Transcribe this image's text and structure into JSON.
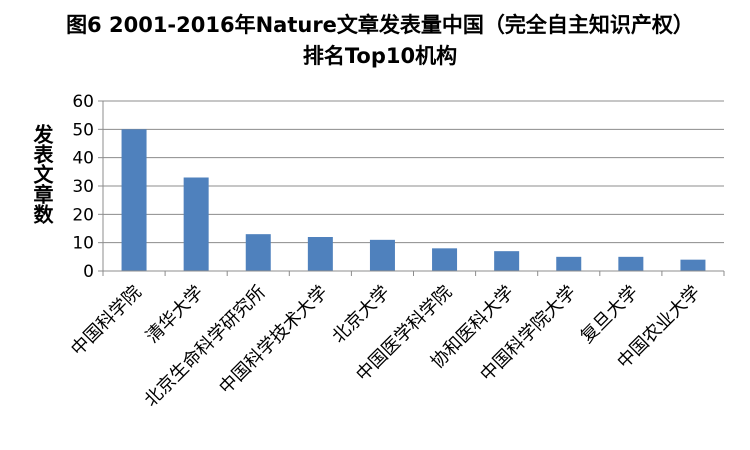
{
  "chart_data": {
    "type": "bar",
    "title": "图6 2001-2016年Nature文章发表量中国（完全自主知识产权）排名Top10机构",
    "xlabel": "",
    "ylabel": "发表文章数",
    "ylim": [
      0,
      60
    ],
    "yticks": [
      0,
      10,
      20,
      30,
      40,
      50,
      60
    ],
    "grid": true,
    "legend": "none",
    "bar_color": "#4F81BD",
    "categories": [
      "中国科学院",
      "清华大学",
      "北京生命科学研究所",
      "中国科学技术大学",
      "北京大学",
      "中国医学科学院",
      "协和医科大学",
      "中国科学院大学",
      "复旦大学",
      "中国农业大学"
    ],
    "values": [
      50,
      33,
      13,
      12,
      11,
      8,
      7,
      5,
      5,
      4
    ]
  }
}
